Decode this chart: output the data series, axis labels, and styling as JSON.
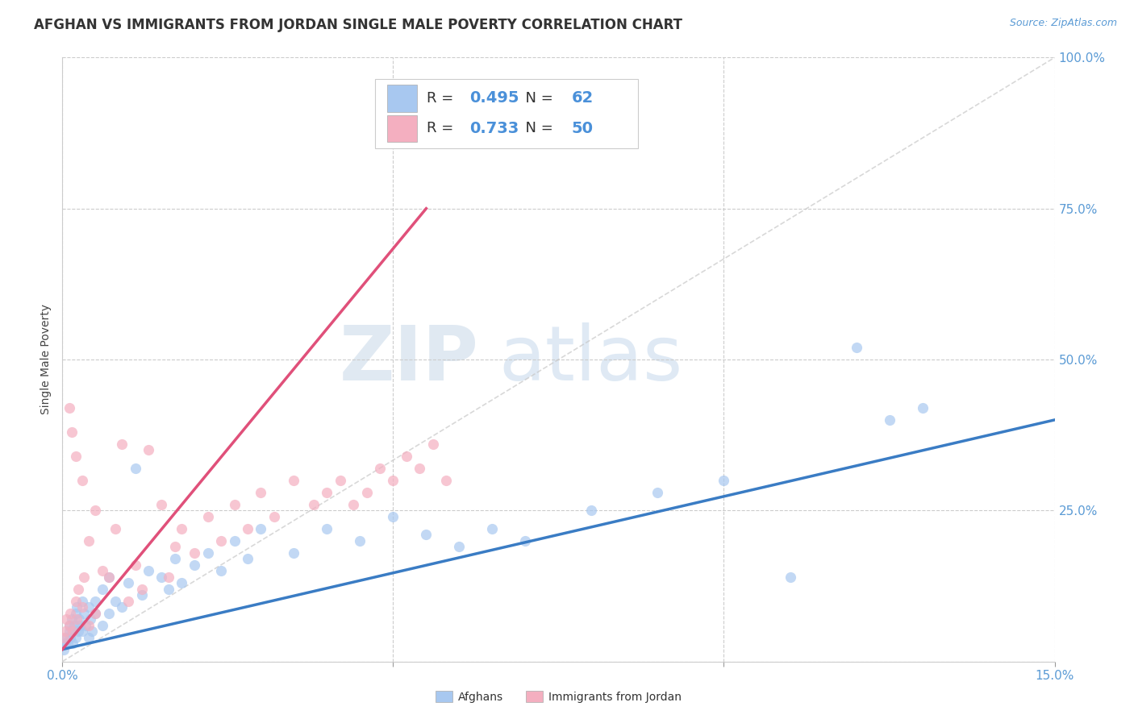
{
  "title": "AFGHAN VS IMMIGRANTS FROM JORDAN SINGLE MALE POVERTY CORRELATION CHART",
  "source": "Source: ZipAtlas.com",
  "ylabel": "Single Male Poverty",
  "xlim": [
    0.0,
    0.15
  ],
  "ylim": [
    0.0,
    1.0
  ],
  "yticks": [
    0.0,
    0.25,
    0.5,
    0.75,
    1.0
  ],
  "ytick_labels": [
    "",
    "25.0%",
    "50.0%",
    "75.0%",
    "100.0%"
  ],
  "xticks": [
    0.0,
    0.05,
    0.1,
    0.15
  ],
  "xtick_labels": [
    "0.0%",
    "",
    "",
    "15.0%"
  ],
  "legend1_R": "0.495",
  "legend1_N": "62",
  "legend2_R": "0.733",
  "legend2_N": "50",
  "color_afghan": "#a8c8f0",
  "color_jordan": "#f4afc0",
  "color_trendline_afghan": "#3a7cc4",
  "color_trendline_jordan": "#e0507a",
  "color_diagonal": "#c8c8c8",
  "background_color": "#ffffff",
  "watermark_zip": "ZIP",
  "watermark_atlas": "atlas",
  "afghans_x": [
    0.0002,
    0.0004,
    0.0006,
    0.0008,
    0.001,
    0.001,
    0.0012,
    0.0014,
    0.0015,
    0.0016,
    0.0018,
    0.002,
    0.002,
    0.0022,
    0.0024,
    0.0025,
    0.0026,
    0.003,
    0.003,
    0.0032,
    0.0035,
    0.004,
    0.004,
    0.0042,
    0.0045,
    0.005,
    0.005,
    0.006,
    0.006,
    0.007,
    0.007,
    0.008,
    0.009,
    0.01,
    0.011,
    0.012,
    0.013,
    0.015,
    0.016,
    0.017,
    0.018,
    0.02,
    0.022,
    0.024,
    0.026,
    0.028,
    0.03,
    0.035,
    0.04,
    0.045,
    0.05,
    0.055,
    0.06,
    0.065,
    0.07,
    0.08,
    0.09,
    0.1,
    0.11,
    0.12,
    0.125,
    0.13
  ],
  "afghans_y": [
    0.02,
    0.03,
    0.04,
    0.03,
    0.05,
    0.06,
    0.04,
    0.07,
    0.05,
    0.03,
    0.06,
    0.08,
    0.04,
    0.09,
    0.05,
    0.07,
    0.06,
    0.1,
    0.05,
    0.08,
    0.06,
    0.09,
    0.04,
    0.07,
    0.05,
    0.1,
    0.08,
    0.12,
    0.06,
    0.14,
    0.08,
    0.1,
    0.09,
    0.13,
    0.32,
    0.11,
    0.15,
    0.14,
    0.12,
    0.17,
    0.13,
    0.16,
    0.18,
    0.15,
    0.2,
    0.17,
    0.22,
    0.18,
    0.22,
    0.2,
    0.24,
    0.21,
    0.19,
    0.22,
    0.2,
    0.25,
    0.28,
    0.3,
    0.14,
    0.52,
    0.4,
    0.42
  ],
  "jordan_x": [
    0.0002,
    0.0004,
    0.0006,
    0.001,
    0.001,
    0.0012,
    0.0014,
    0.0016,
    0.002,
    0.002,
    0.0022,
    0.0024,
    0.003,
    0.003,
    0.0032,
    0.004,
    0.004,
    0.005,
    0.005,
    0.006,
    0.007,
    0.008,
    0.009,
    0.01,
    0.011,
    0.012,
    0.013,
    0.015,
    0.016,
    0.017,
    0.018,
    0.02,
    0.022,
    0.024,
    0.026,
    0.028,
    0.03,
    0.032,
    0.035,
    0.038,
    0.04,
    0.042,
    0.044,
    0.046,
    0.048,
    0.05,
    0.052,
    0.054,
    0.056,
    0.058
  ],
  "jordan_y": [
    0.04,
    0.05,
    0.07,
    0.06,
    0.42,
    0.08,
    0.38,
    0.05,
    0.1,
    0.34,
    0.07,
    0.12,
    0.3,
    0.09,
    0.14,
    0.06,
    0.2,
    0.25,
    0.08,
    0.15,
    0.14,
    0.22,
    0.36,
    0.1,
    0.16,
    0.12,
    0.35,
    0.26,
    0.14,
    0.19,
    0.22,
    0.18,
    0.24,
    0.2,
    0.26,
    0.22,
    0.28,
    0.24,
    0.3,
    0.26,
    0.28,
    0.3,
    0.26,
    0.28,
    0.32,
    0.3,
    0.34,
    0.32,
    0.36,
    0.3
  ],
  "trendline_afghan_x0": 0.0,
  "trendline_afghan_y0": 0.02,
  "trendline_afghan_x1": 0.15,
  "trendline_afghan_y1": 0.4,
  "trendline_jordan_x0": 0.0,
  "trendline_jordan_y0": 0.02,
  "trendline_jordan_x1": 0.055,
  "trendline_jordan_y1": 0.75
}
